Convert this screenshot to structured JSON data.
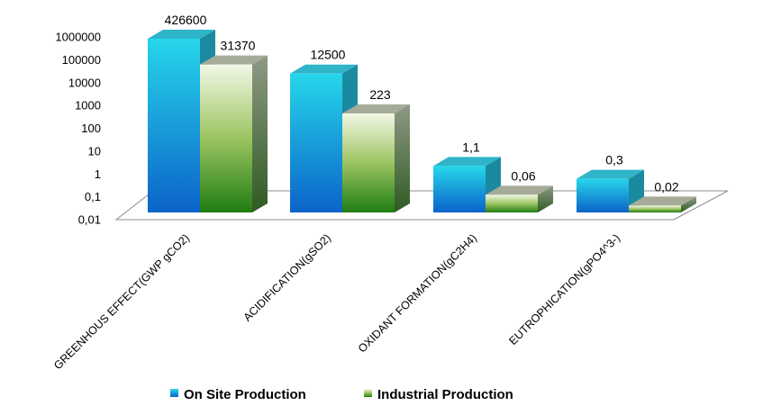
{
  "chart_data": {
    "type": "bar",
    "scale": "log",
    "ylim": [
      0.01,
      1000000
    ],
    "y_ticks": [
      "0,01",
      "0,1",
      "1",
      "10",
      "100",
      "1000",
      "10000",
      "100000",
      "1000000"
    ],
    "categories": [
      "GREENHOUS EFFECT(GWP gCO2)",
      "ACIDIFICATION(gSO2)",
      "OXIDANT FORMATION(gC2H4)",
      "EUTROPHICATION(gPO4^3-)"
    ],
    "series": [
      {
        "name": "On Site Production",
        "values": [
          426600,
          12500,
          1.1,
          0.3
        ],
        "labels": [
          "426600",
          "12500",
          "1,1",
          "0,3"
        ],
        "color": "#1ba3e0"
      },
      {
        "name": "Industrial Production",
        "values": [
          31370,
          223,
          0.06,
          0.02
        ],
        "labels": [
          "31370",
          "223",
          "0,06",
          "0,02"
        ],
        "color": "#5ea832"
      }
    ],
    "legend_position": "bottom",
    "grid": false,
    "style": "3d-column"
  }
}
